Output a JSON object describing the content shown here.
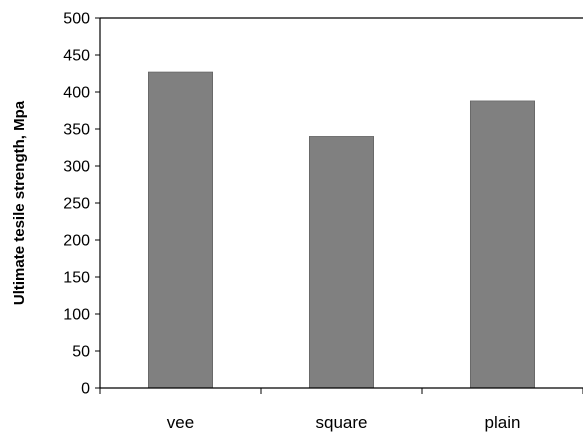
{
  "chart_data": {
    "type": "bar",
    "title": "",
    "xlabel": "",
    "ylabel": "Ultimate tesile strength,  Mpa",
    "categories": [
      "vee",
      "square",
      "plain"
    ],
    "values": [
      427,
      340,
      388
    ],
    "ylim": [
      0,
      500
    ],
    "yticks": [
      0,
      50,
      100,
      150,
      200,
      250,
      300,
      350,
      400,
      450,
      500
    ],
    "grid": false,
    "legend": "none",
    "colors": {
      "bar": "#808080",
      "bar_stroke": "#5a5a5a",
      "axis": "#000000",
      "background": "#ffffff"
    }
  }
}
